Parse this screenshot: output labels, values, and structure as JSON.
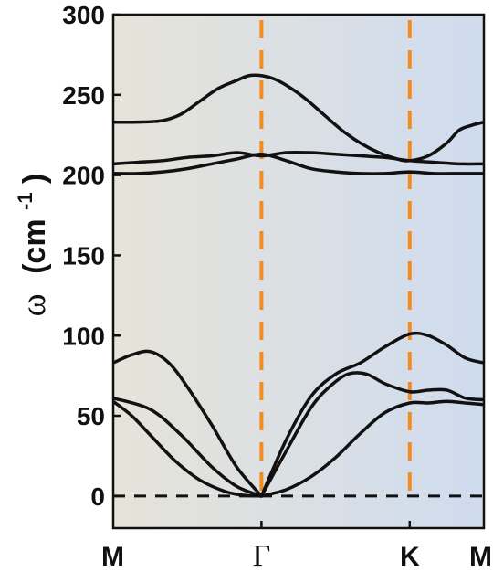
{
  "chart_data": {
    "type": "line",
    "title": "",
    "xlabel": "",
    "ylabel": "ω (cm⁻¹)",
    "ylabel_parts": {
      "symbol": "ω",
      "open": "(cm",
      "sup": "-1",
      "close": ")"
    },
    "ylim": [
      -20,
      300
    ],
    "yticks": [
      0,
      50,
      100,
      150,
      200,
      250,
      300
    ],
    "xlim": [
      0,
      3
    ],
    "xticks": [
      {
        "label": "M",
        "x": 0
      },
      {
        "label": "Γ",
        "x": 1.2
      },
      {
        "label": "K",
        "x": 2.4
      },
      {
        "label": "M",
        "x": 3
      }
    ],
    "vlines": {
      "x": [
        1.2,
        2.4
      ],
      "color": "#f58a1f",
      "style": "dashed"
    },
    "hline": {
      "y": 0,
      "color": "#111111",
      "style": "dashed"
    },
    "background_gradient": [
      "#e6e3d9",
      "#cfdcef"
    ],
    "line_color": "#111111",
    "series": [
      {
        "x": [
          0,
          0.15,
          0.3,
          0.5,
          0.7,
          0.9,
          1.05,
          1.2
        ],
        "y": [
          59,
          50,
          38,
          22,
          10,
          3,
          0.5,
          0
        ]
      },
      {
        "x": [
          0,
          0.3,
          0.55,
          0.8,
          1.0,
          1.2
        ],
        "y": [
          61,
          54,
          38,
          18,
          6,
          0
        ]
      },
      {
        "x": [
          0,
          0.15,
          0.3,
          0.45,
          0.6,
          0.8,
          1.0,
          1.2
        ],
        "y": [
          83,
          88,
          90,
          83,
          68,
          44,
          18,
          0
        ]
      },
      {
        "x": [
          1.2,
          1.4,
          1.6,
          1.8,
          2.0,
          2.2,
          2.4,
          2.55,
          2.7,
          2.85,
          3.0
        ],
        "y": [
          0,
          4,
          12,
          24,
          39,
          52,
          58,
          58,
          59,
          58,
          57
        ]
      },
      {
        "x": [
          1.2,
          1.4,
          1.6,
          1.75,
          1.9,
          2.05,
          2.2,
          2.4,
          2.55,
          2.7,
          2.85,
          3.0
        ],
        "y": [
          0,
          28,
          55,
          68,
          76,
          76,
          70,
          65,
          66,
          66,
          61,
          60
        ]
      },
      {
        "x": [
          1.2,
          1.4,
          1.6,
          1.8,
          2.0,
          2.2,
          2.4,
          2.55,
          2.7,
          2.85,
          3.0
        ],
        "y": [
          0,
          35,
          62,
          76,
          83,
          93,
          101,
          100,
          94,
          86,
          83
        ]
      },
      {
        "x": [
          0,
          0.2,
          0.4,
          0.6,
          0.8,
          1.0,
          1.2,
          1.4,
          1.6,
          1.8,
          2.0,
          2.2,
          2.4,
          2.6,
          2.8,
          3.0
        ],
        "y": [
          201,
          201,
          202,
          204,
          207,
          210,
          213,
          209,
          204,
          202,
          201,
          201,
          202,
          201,
          201,
          201
        ]
      },
      {
        "x": [
          0,
          0.2,
          0.4,
          0.6,
          0.8,
          1.0,
          1.2,
          1.4,
          1.6,
          1.8,
          2.0,
          2.2,
          2.4,
          2.6,
          2.8,
          3.0
        ],
        "y": [
          207,
          208,
          209,
          211,
          212,
          214,
          212,
          214,
          214,
          213,
          212,
          211,
          209,
          208,
          207,
          207
        ]
      },
      {
        "x": [
          0,
          0.2,
          0.4,
          0.55,
          0.7,
          0.85,
          1.0,
          1.1,
          1.2,
          1.3,
          1.4,
          1.55,
          1.7,
          1.85,
          2.0,
          2.15,
          2.3,
          2.4,
          2.55,
          2.7,
          2.8,
          2.9,
          3.0
        ],
        "y": [
          233,
          233,
          234,
          238,
          246,
          254,
          259,
          262,
          262,
          260,
          256,
          248,
          238,
          228,
          220,
          214,
          210,
          209,
          212,
          220,
          228,
          231,
          233
        ]
      }
    ]
  }
}
